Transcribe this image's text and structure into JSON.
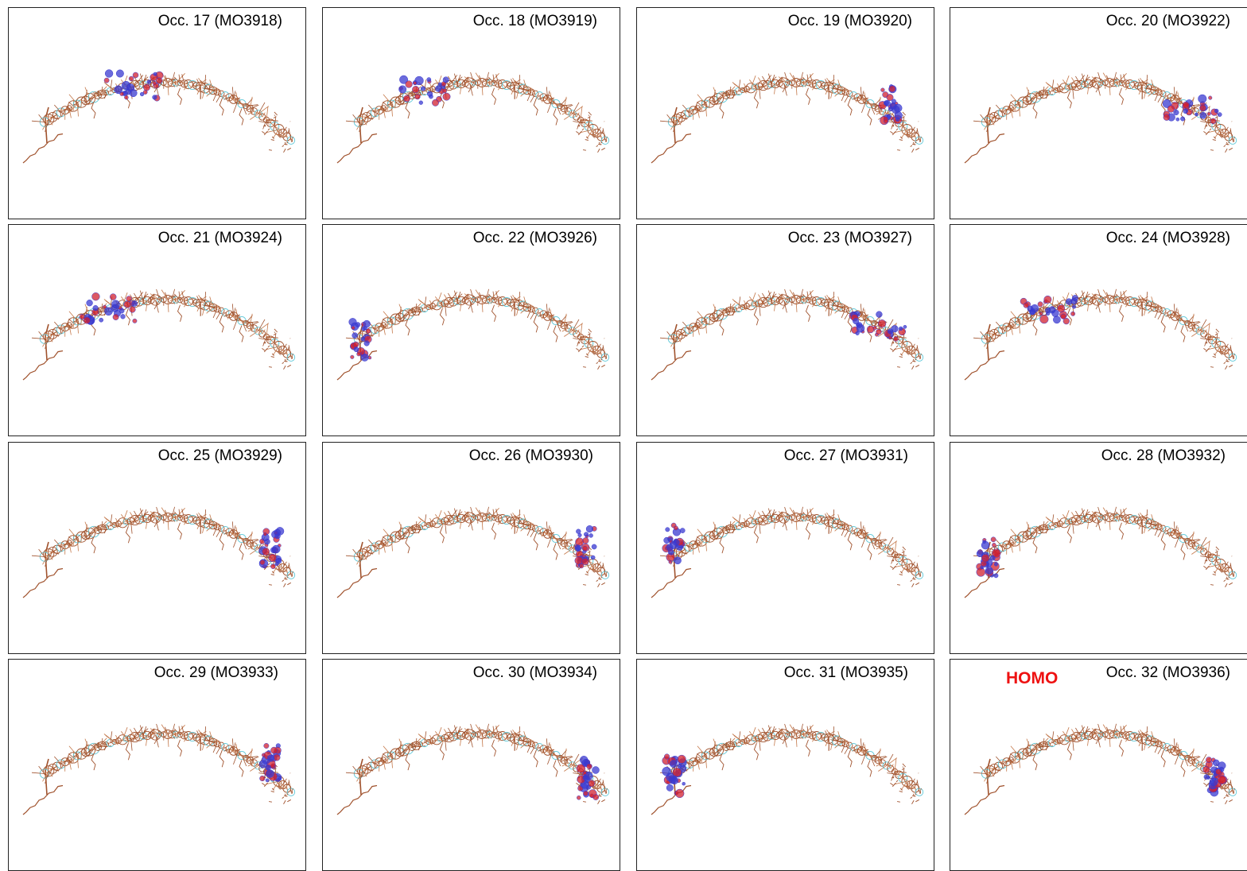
{
  "colors": {
    "bond": "#a0522d",
    "bond_light": "#c4784a",
    "ring": "#5fc8d8",
    "orbital_a": "#3a3ad0",
    "orbital_b": "#d02030",
    "tag": "#ee1111"
  },
  "panels": [
    {
      "label": "Occ. 17 (MO3918)",
      "orbital": "lb1"
    },
    {
      "label": "Occ. 18 (MO3919)",
      "orbital": "lb2"
    },
    {
      "label": "Occ. 19 (MO3920)",
      "orbital": "rt"
    },
    {
      "label": "Occ. 20 (MO3922)",
      "orbital": "rt2"
    },
    {
      "label": "Occ. 21 (MO3924)",
      "orbital": "lb3"
    },
    {
      "label": "Occ. 22 (MO3926)",
      "orbital": "lf"
    },
    {
      "label": "Occ. 23 (MO3927)",
      "orbital": "rt2"
    },
    {
      "label": "Occ. 24 (MO3928)",
      "orbital": "lb3"
    },
    {
      "label": "Occ. 25 (MO3929)",
      "orbital": "re"
    },
    {
      "label": "Occ. 26 (MO3930)",
      "orbital": "re"
    },
    {
      "label": "Occ. 27 (MO3931)",
      "orbital": "lf2"
    },
    {
      "label": "Occ. 28 (MO3932)",
      "orbital": "lf"
    },
    {
      "label": "Occ. 29 (MO3933)",
      "orbital": "re"
    },
    {
      "label": "Occ. 30 (MO3934)",
      "orbital": "rb"
    },
    {
      "label": "Occ. 31 (MO3935)",
      "orbital": "lf"
    },
    {
      "label": "Occ. 32 (MO3936)",
      "orbital": "rb",
      "tag": "HOMO"
    }
  ]
}
